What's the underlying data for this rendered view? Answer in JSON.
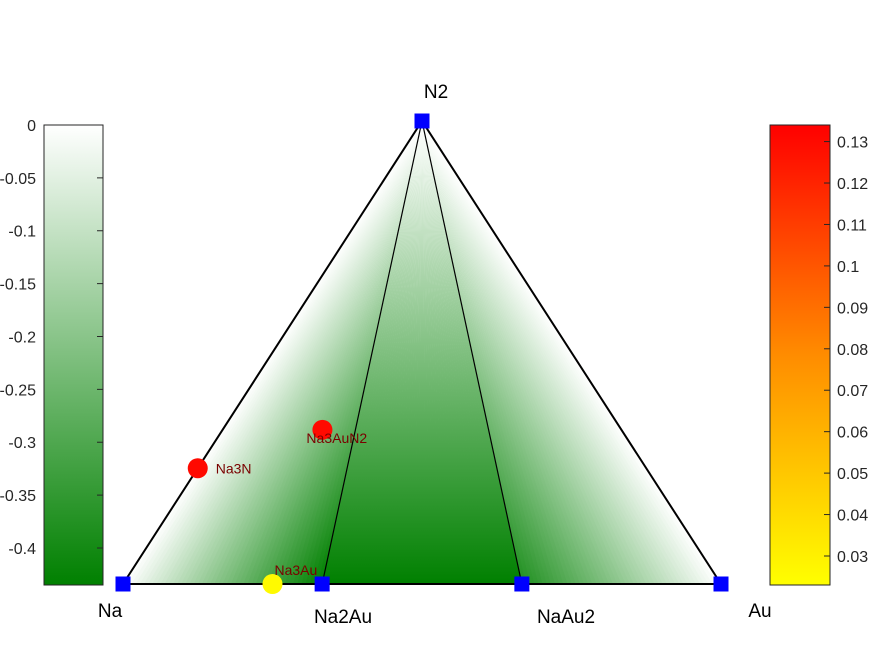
{
  "chart_data": {
    "type": "ternary-phase-diagram",
    "corners": {
      "left": "Na",
      "right": "Au",
      "top": "N2"
    },
    "stable_phases": [
      {
        "name": "Na",
        "composition": {
          "Na": 1.0,
          "Au": 0.0,
          "N2": 0.0
        }
      },
      {
        "name": "Na2Au",
        "composition": {
          "Na": 0.667,
          "Au": 0.333,
          "N2": 0.0
        }
      },
      {
        "name": "NaAu2",
        "composition": {
          "Na": 0.333,
          "Au": 0.667,
          "N2": 0.0
        }
      },
      {
        "name": "Au",
        "composition": {
          "Na": 0.0,
          "Au": 1.0,
          "N2": 0.0
        }
      },
      {
        "name": "N2",
        "composition": {
          "Na": 0.0,
          "Au": 0.0,
          "N2": 1.0
        }
      }
    ],
    "unstable_phases": [
      {
        "name": "Na3N",
        "composition": {
          "Na": 0.75,
          "Au": 0.0,
          "N2": 0.25
        },
        "e_above_hull": 0.13
      },
      {
        "name": "Na3AuN2",
        "composition": {
          "Na": 0.5,
          "Au": 0.167,
          "N2": 0.333
        },
        "e_above_hull": 0.13
      },
      {
        "name": "Na3Au",
        "composition": {
          "Na": 0.75,
          "Au": 0.25,
          "N2": 0.0
        },
        "e_above_hull": 0.025
      }
    ],
    "tie_lines": [
      [
        "Na",
        "Na2Au"
      ],
      [
        "Na2Au",
        "NaAu2"
      ],
      [
        "NaAu2",
        "Au"
      ],
      [
        "Na",
        "N2"
      ],
      [
        "Au",
        "N2"
      ],
      [
        "Na2Au",
        "N2"
      ],
      [
        "NaAu2",
        "N2"
      ]
    ],
    "formation_energy_colorbar": {
      "ticks": [
        "0",
        "-0.05",
        "-0.1",
        "-0.15",
        "-0.2",
        "-0.25",
        "-0.3",
        "-0.35",
        "-0.4"
      ],
      "tick_values": [
        0,
        -0.05,
        -0.1,
        -0.15,
        -0.2,
        -0.25,
        -0.3,
        -0.35,
        -0.4
      ],
      "range": [
        -0.435,
        0
      ],
      "colors": [
        "#ffffff",
        "#008000"
      ]
    },
    "e_above_hull_colorbar": {
      "ticks": [
        "0.13",
        "0.12",
        "0.11",
        "0.1",
        "0.09",
        "0.08",
        "0.07",
        "0.06",
        "0.05",
        "0.04",
        "0.03"
      ],
      "tick_values": [
        0.13,
        0.12,
        0.11,
        0.1,
        0.09,
        0.08,
        0.07,
        0.06,
        0.05,
        0.04,
        0.03
      ],
      "range": [
        0.023,
        0.134
      ],
      "colors": [
        "#ffff00",
        "#ff0000"
      ]
    },
    "facet_min_energy": {
      "Na-Na2Au-N2": -0.435,
      "Na2Au-NaAu2-N2": -0.435,
      "NaAu2-Au-N2": -0.38
    }
  }
}
